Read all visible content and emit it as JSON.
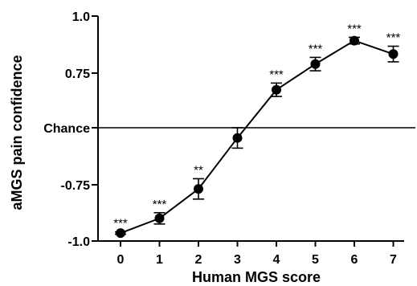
{
  "chart_data": {
    "type": "line",
    "xlabel": "Human MGS score",
    "ylabel": "aMGS pain confidence",
    "x": [
      0,
      1,
      2,
      3,
      4,
      5,
      6,
      7
    ],
    "series": [
      {
        "values": [
          -0.93,
          -0.8,
          -0.54,
          -0.09,
          0.34,
          0.57,
          0.78,
          0.66
        ],
        "error": [
          0.01,
          0.05,
          0.09,
          0.09,
          0.06,
          0.06,
          0.03,
          0.07
        ],
        "significance": [
          "***",
          "***",
          "**",
          "",
          "***",
          "***",
          "***",
          "***"
        ]
      }
    ],
    "xticks": [
      "0",
      "1",
      "2",
      "3",
      "4",
      "5",
      "6",
      "7"
    ],
    "yticks": [
      {
        "value": -1.0,
        "label": "-1.0"
      },
      {
        "value": -0.75,
        "label": "-0.75"
      },
      {
        "value": 0,
        "label": "Chance"
      },
      {
        "value": 0.75,
        "label": "0.75"
      },
      {
        "value": 1.0,
        "label": "1.0"
      }
    ],
    "reference_line": {
      "value": 0,
      "label": "Chance"
    },
    "xlim": [
      -0.6,
      7.6
    ],
    "ylim": [
      -1.0,
      1.0
    ],
    "grid": false,
    "colors": {
      "line": "#000000",
      "marker": "#000000"
    }
  }
}
